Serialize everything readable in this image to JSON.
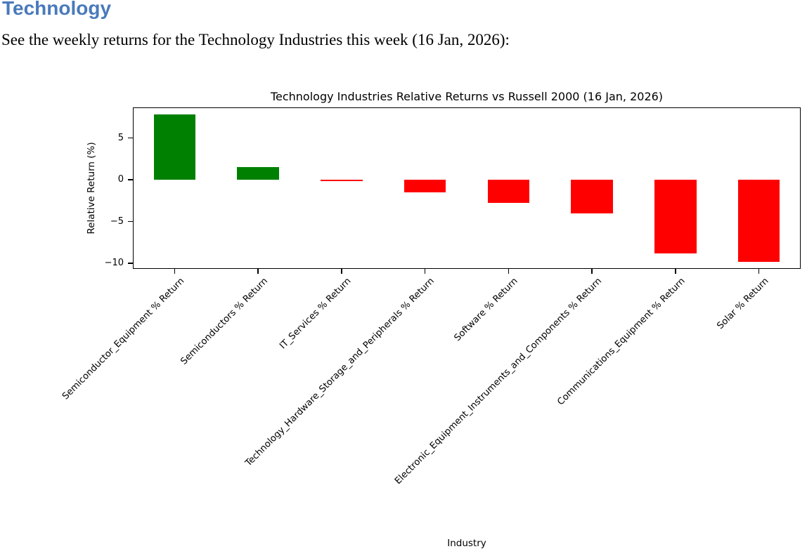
{
  "document": {
    "heading": "Technology",
    "heading_color": "#4a7aba",
    "intro": "See the weekly returns for the Technology Industries this week (16 Jan, 2026):"
  },
  "chart_data": {
    "type": "bar",
    "title": "Technology Industries Relative Returns vs Russell 2000 (16 Jan, 2026)",
    "xlabel": "Industry",
    "ylabel": "Relative Return (%)",
    "categories": [
      "Semiconductor_Equipment % Return",
      "Semiconductors % Return",
      "IT_Services % Return",
      "Technology_Hardware_Storage_and_Peripherals % Return",
      "Software % Return",
      "Electronic_Equipment_Instruments_and_Components % Return",
      "Communications_Equipment % Return",
      "Solar % Return"
    ],
    "values": [
      7.8,
      1.5,
      -0.2,
      -1.5,
      -2.8,
      -4.0,
      -8.8,
      -9.8
    ],
    "positive_color": "#008000",
    "negative_color": "#ff0000",
    "yticks": [
      5,
      0,
      -5,
      -10
    ],
    "ylim": [
      -10.68,
      8.68
    ],
    "grid": false,
    "xtick_rotation": 45
  }
}
